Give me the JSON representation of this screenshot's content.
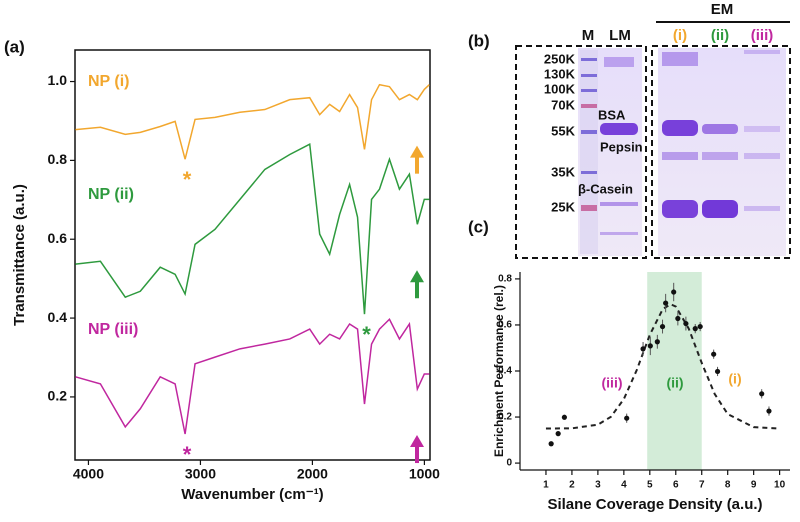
{
  "panel_labels": [
    "(a)",
    "(b)",
    "(c)"
  ],
  "chart_data": [
    {
      "type": "line",
      "xlabel": "Wavenumber (cm⁻¹)",
      "ylabel": "Transmittance (a.u.)",
      "x": [
        4116,
        3893,
        3671,
        3537,
        3359,
        3226,
        3137,
        3048,
        2870,
        2647,
        2425,
        2202,
        2024,
        1935,
        1846,
        1757,
        1668,
        1597,
        1535,
        1472,
        1401,
        1312,
        1223,
        1134,
        1063,
        1001,
        956
      ],
      "xlim": [
        4120,
        950
      ],
      "xticks": [
        4000,
        3000,
        2000,
        1000
      ],
      "ylim": [
        0.04,
        1.08
      ],
      "yticks": [
        0.2,
        0.4,
        0.6,
        0.8,
        {
          "value": 1.0,
          "label": "1.0"
        }
      ],
      "series": [
        {
          "name": "NP (i)",
          "color": "#f2a72e",
          "values": [
            0.878,
            0.884,
            0.866,
            0.871,
            0.886,
            0.899,
            0.803,
            0.904,
            0.909,
            0.922,
            0.929,
            0.954,
            0.959,
            0.916,
            0.942,
            0.924,
            0.967,
            0.934,
            0.828,
            0.954,
            0.992,
            0.987,
            0.954,
            0.967,
            0.954,
            0.98,
            0.992
          ]
        },
        {
          "name": "NP (ii)",
          "color": "#2e9a3e",
          "values": [
            0.537,
            0.544,
            0.453,
            0.468,
            0.529,
            0.511,
            0.461,
            0.587,
            0.625,
            0.701,
            0.777,
            0.815,
            0.841,
            0.613,
            0.562,
            0.663,
            0.739,
            0.656,
            0.41,
            0.701,
            0.727,
            0.803,
            0.727,
            0.765,
            0.638,
            0.701,
            0.701
          ]
        },
        {
          "name": "NP (iii)",
          "color": "#c0279f",
          "values": [
            0.251,
            0.233,
            0.124,
            0.17,
            0.251,
            0.233,
            0.106,
            0.284,
            0.301,
            0.322,
            0.334,
            0.347,
            0.372,
            0.334,
            0.359,
            0.347,
            0.385,
            0.372,
            0.182,
            0.334,
            0.372,
            0.397,
            0.347,
            0.385,
            0.22,
            0.258,
            0.258
          ]
        }
      ],
      "annotations": [
        "*",
        "*",
        "*"
      ]
    },
    {
      "type": "scatter",
      "xlabel": "Silane Coverage Density (a.u.)",
      "ylabel": "Enrichment Performance (rel.)",
      "x": [
        1.2,
        1.47,
        1.71,
        4.11,
        4.74,
        5.02,
        5.29,
        5.49,
        5.61,
        5.92,
        6.08,
        6.39,
        6.75,
        6.94,
        7.46,
        7.61,
        9.31,
        9.59
      ],
      "values": [
        0.084,
        0.128,
        0.199,
        0.195,
        0.496,
        0.509,
        0.527,
        0.593,
        0.695,
        0.743,
        0.628,
        0.606,
        0.584,
        0.593,
        0.473,
        0.398,
        0.301,
        0.226
      ],
      "errors": [
        0.01,
        0.01,
        0.01,
        0.02,
        0.03,
        0.04,
        0.03,
        0.03,
        0.04,
        0.04,
        0.03,
        0.03,
        0.02,
        0.02,
        0.02,
        0.02,
        0.02,
        0.02
      ],
      "color": "#111111",
      "fit": {
        "x": [
          1,
          2,
          3,
          3.5,
          4,
          4.5,
          5,
          5.5,
          5.8,
          6,
          6.5,
          7,
          7.5,
          8,
          9,
          10
        ],
        "values": [
          0.15,
          0.151,
          0.167,
          0.201,
          0.278,
          0.405,
          0.557,
          0.669,
          0.69,
          0.68,
          0.584,
          0.435,
          0.3,
          0.213,
          0.156,
          0.15
        ]
      },
      "highlight_xrange": [
        4.9,
        7.0
      ],
      "highlight_color": "#d3ecd8",
      "xlim": [
        0,
        10.4
      ],
      "xticks": [
        1,
        2,
        3,
        4,
        5,
        6,
        7,
        8,
        9,
        10
      ],
      "ylim": [
        -0.03,
        0.83
      ],
      "yticks": [
        0,
        0.2,
        0.4,
        0.6,
        0.8
      ],
      "annotations": [
        {
          "text": "(iii)",
          "color": "#c0279f"
        },
        {
          "text": "(ii)",
          "color": "#2e9a3e"
        },
        {
          "text": "(i)",
          "color": "#f2a72e"
        }
      ]
    }
  ],
  "gel": {
    "lanes": [
      "M",
      "LM"
    ],
    "group": "EM",
    "group_lanes": [
      {
        "text": "(i)",
        "color": "#f2a72e"
      },
      {
        "text": "(ii)",
        "color": "#2e9a3e"
      },
      {
        "text": "(iii)",
        "color": "#c0279f"
      }
    ],
    "markers": [
      "250K",
      "130K",
      "100K",
      "70K",
      "55K",
      "35K",
      "25K"
    ],
    "proteins": [
      "BSA",
      "Pepsin",
      "β-Casein"
    ]
  }
}
